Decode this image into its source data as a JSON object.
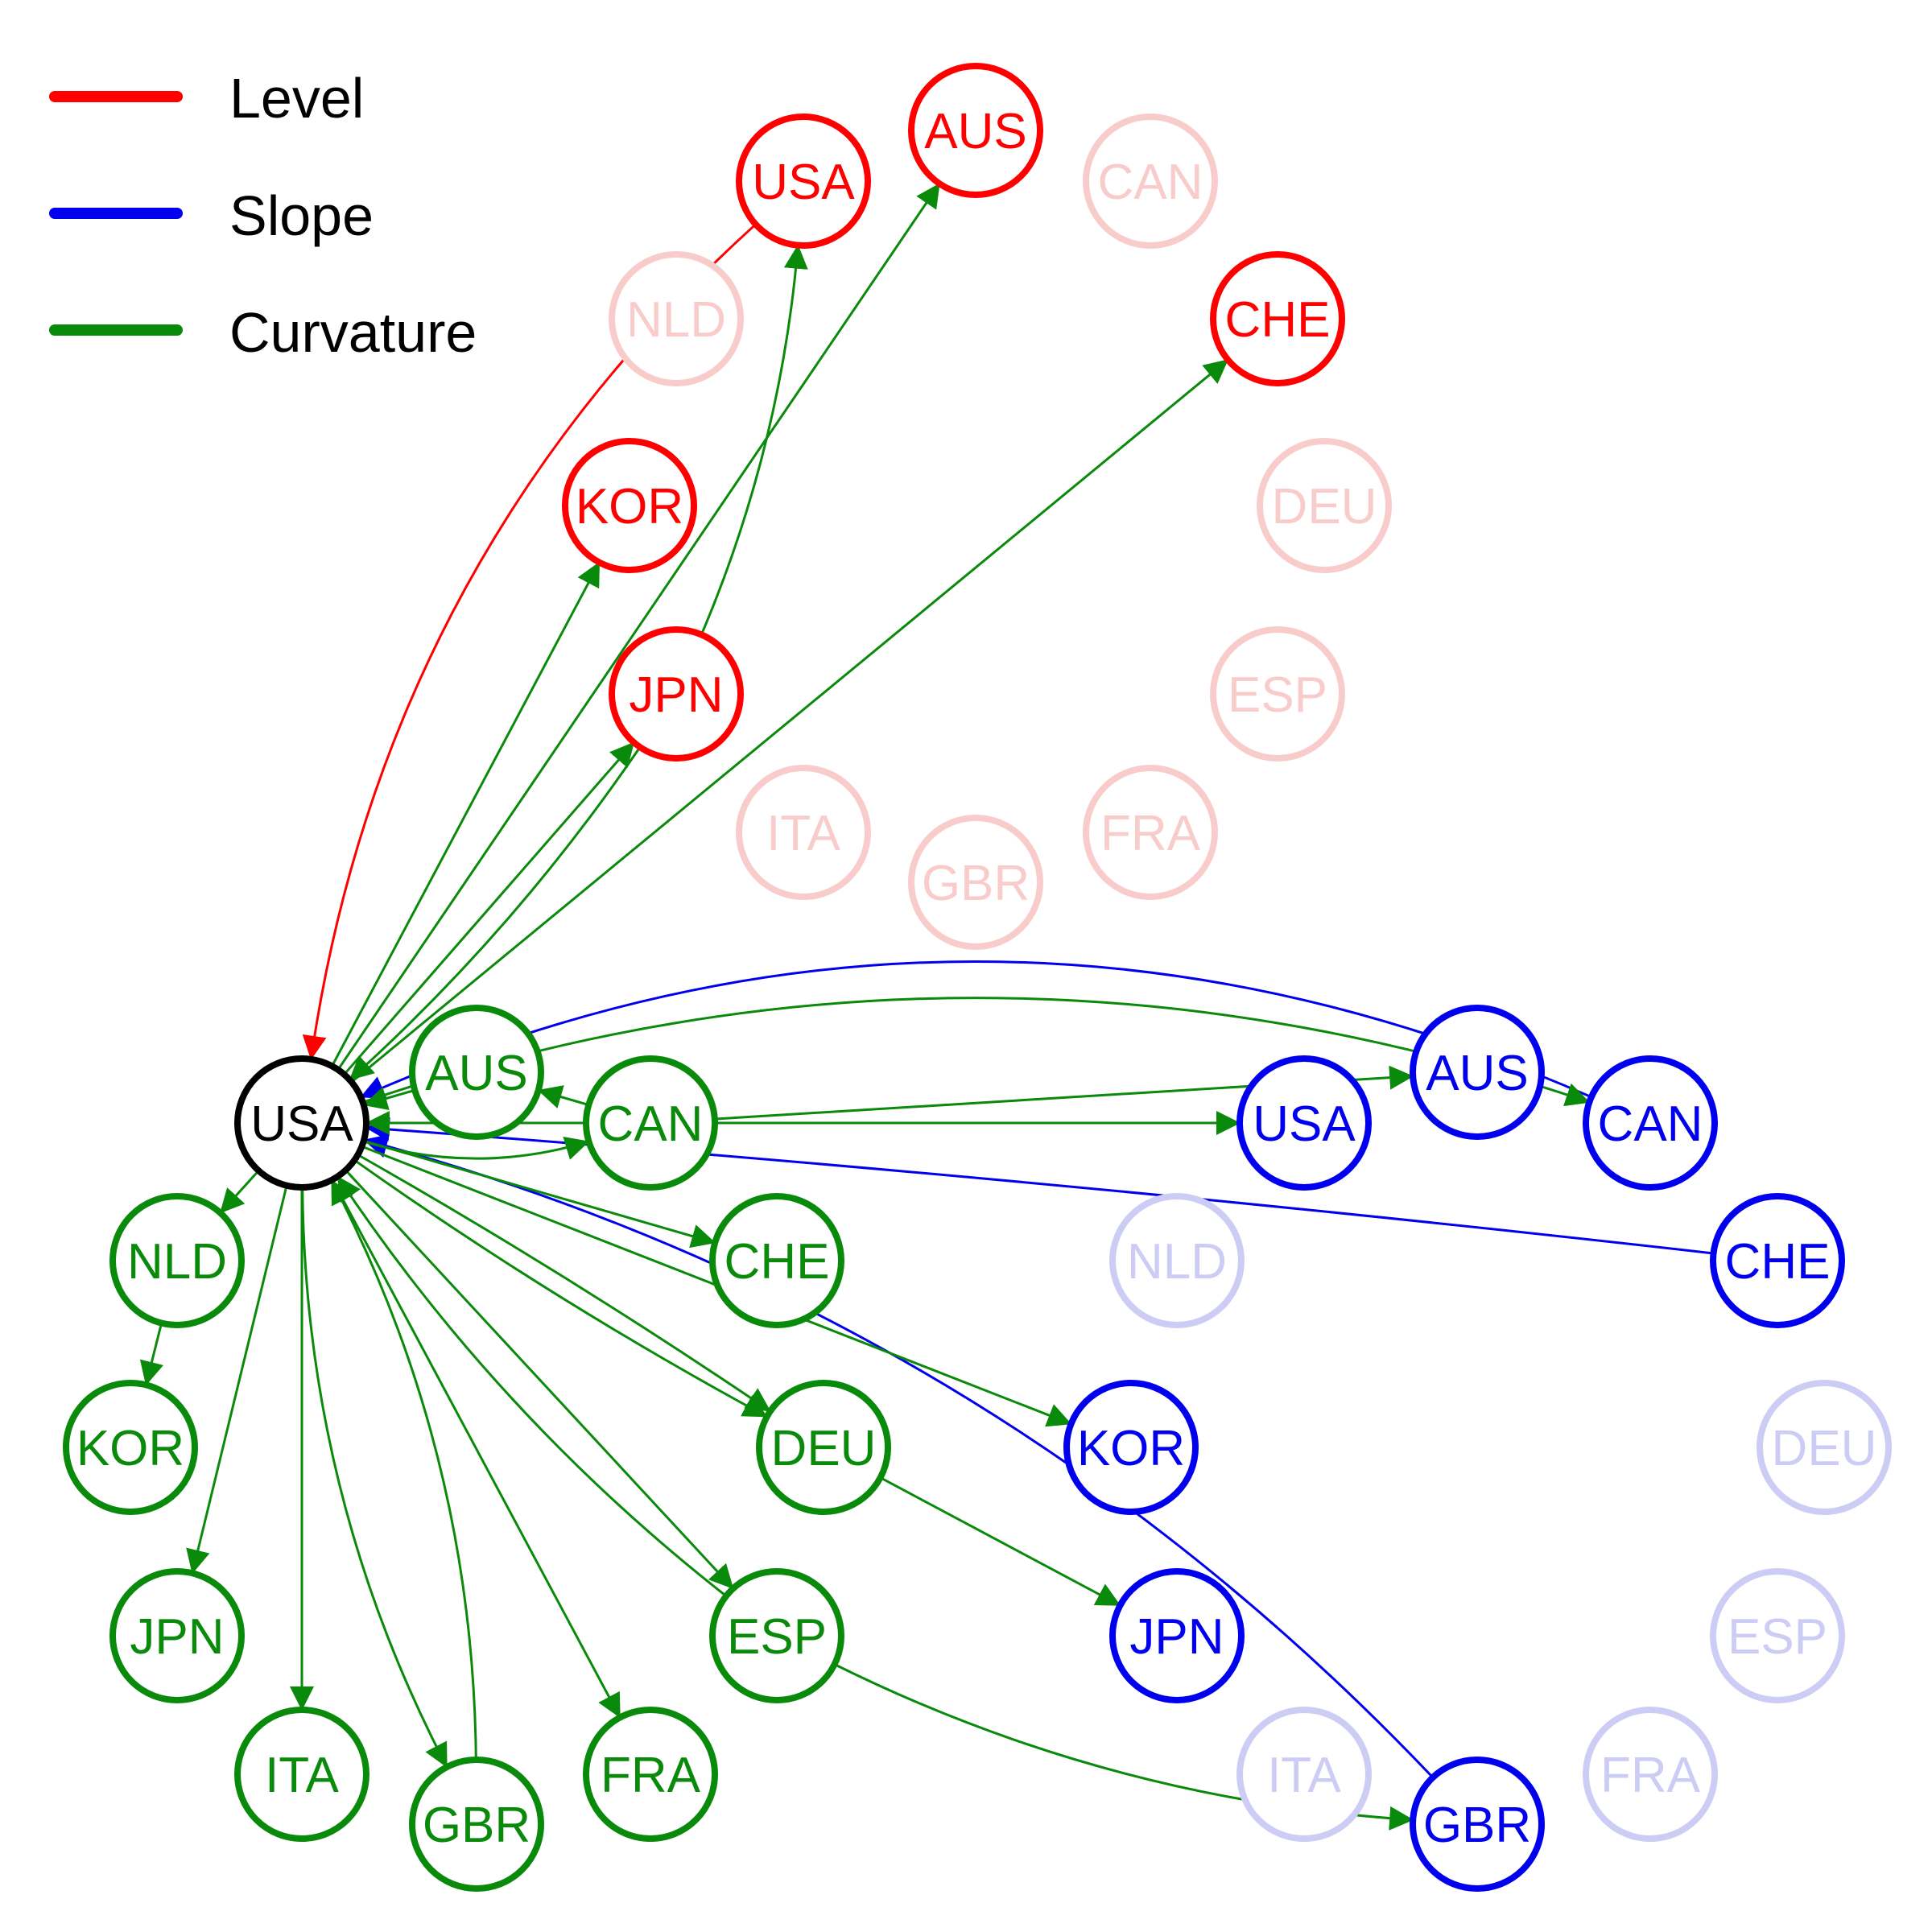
{
  "legend": {
    "level": "Level",
    "slope": "Slope",
    "curvature": "Curvature"
  },
  "colors": {
    "level": "#ff0000",
    "level_faded": "#f9cccc",
    "slope": "#0000ee",
    "slope_faded": "#ccccf5",
    "curvature": "#0a8a0a",
    "center": "#000000"
  },
  "center_node": {
    "label": "USA"
  },
  "groups": {
    "level": {
      "nodes": [
        {
          "id": "USA",
          "label": "USA",
          "active": true
        },
        {
          "id": "AUS",
          "label": "AUS",
          "active": true
        },
        {
          "id": "CAN",
          "label": "CAN",
          "active": false
        },
        {
          "id": "NLD",
          "label": "NLD",
          "active": false
        },
        {
          "id": "CHE",
          "label": "CHE",
          "active": true
        },
        {
          "id": "KOR",
          "label": "KOR",
          "active": true
        },
        {
          "id": "DEU",
          "label": "DEU",
          "active": false
        },
        {
          "id": "JPN",
          "label": "JPN",
          "active": true
        },
        {
          "id": "ESP",
          "label": "ESP",
          "active": false
        },
        {
          "id": "ITA",
          "label": "ITA",
          "active": false
        },
        {
          "id": "FRA",
          "label": "FRA",
          "active": false
        },
        {
          "id": "GBR",
          "label": "GBR",
          "active": false
        }
      ]
    },
    "slope": {
      "nodes": [
        {
          "id": "AUS",
          "label": "AUS",
          "active": true
        },
        {
          "id": "USA",
          "label": "USA",
          "active": true
        },
        {
          "id": "CAN",
          "label": "CAN",
          "active": true
        },
        {
          "id": "NLD",
          "label": "NLD",
          "active": false
        },
        {
          "id": "CHE",
          "label": "CHE",
          "active": true
        },
        {
          "id": "KOR",
          "label": "KOR",
          "active": true
        },
        {
          "id": "DEU",
          "label": "DEU",
          "active": false
        },
        {
          "id": "JPN",
          "label": "JPN",
          "active": true
        },
        {
          "id": "ESP",
          "label": "ESP",
          "active": false
        },
        {
          "id": "ITA",
          "label": "ITA",
          "active": false
        },
        {
          "id": "GBR",
          "label": "GBR",
          "active": true
        },
        {
          "id": "FRA",
          "label": "FRA",
          "active": false
        }
      ]
    },
    "curvature": {
      "nodes": [
        {
          "id": "AUS",
          "label": "AUS",
          "active": true
        },
        {
          "id": "CAN",
          "label": "CAN",
          "active": true
        },
        {
          "id": "NLD",
          "label": "NLD",
          "active": true
        },
        {
          "id": "CHE",
          "label": "CHE",
          "active": true
        },
        {
          "id": "KOR",
          "label": "KOR",
          "active": true
        },
        {
          "id": "DEU",
          "label": "DEU",
          "active": true
        },
        {
          "id": "JPN",
          "label": "JPN",
          "active": true
        },
        {
          "id": "ESP",
          "label": "ESP",
          "active": true
        },
        {
          "id": "ITA",
          "label": "ITA",
          "active": true
        },
        {
          "id": "FRA",
          "label": "FRA",
          "active": true
        },
        {
          "id": "GBR",
          "label": "GBR",
          "active": true
        }
      ]
    }
  }
}
